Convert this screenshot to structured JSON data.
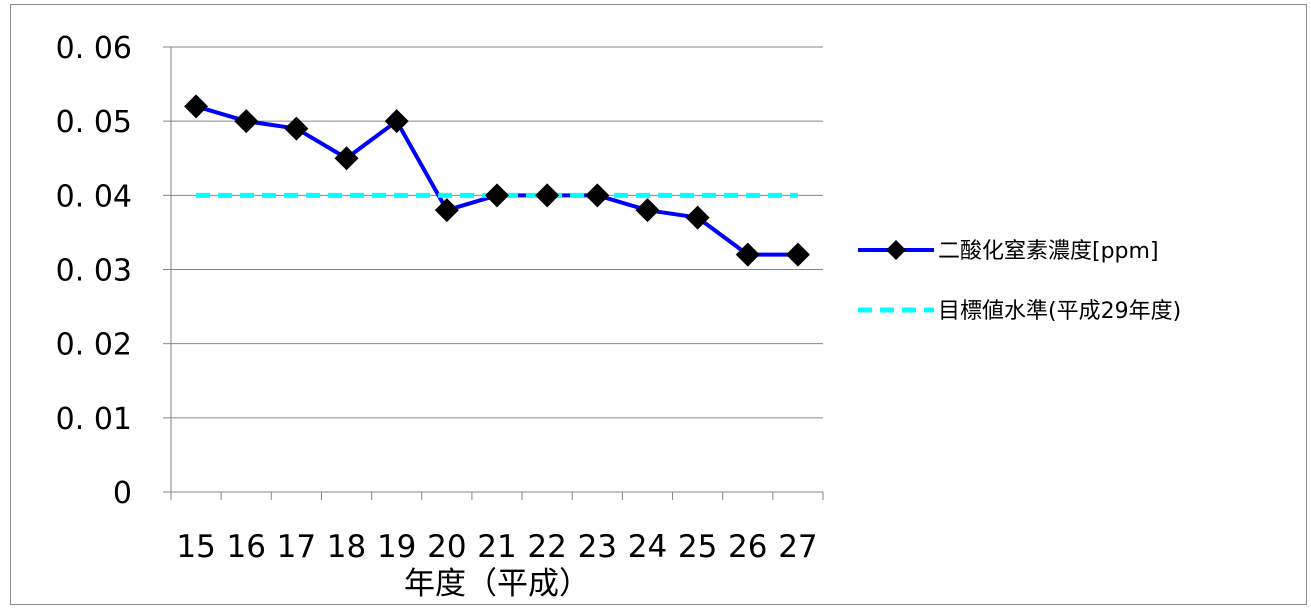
{
  "chart_data": {
    "type": "line",
    "categories": [
      "15",
      "16",
      "17",
      "18",
      "19",
      "20",
      "21",
      "22",
      "23",
      "24",
      "25",
      "26",
      "27"
    ],
    "series": [
      {
        "name": "二酸化窒素濃度[ppm]",
        "values": [
          0.052,
          0.05,
          0.049,
          0.045,
          0.05,
          0.038,
          0.04,
          0.04,
          0.04,
          0.038,
          0.037,
          0.032,
          0.032
        ],
        "color": "#0000ff",
        "marker": "diamond",
        "marker_color": "#000000",
        "style": "solid"
      },
      {
        "name": "目標値水準(平成29年度)",
        "values": [
          0.04,
          0.04,
          0.04,
          0.04,
          0.04,
          0.04,
          0.04,
          0.04,
          0.04,
          0.04,
          0.04,
          0.04,
          0.04
        ],
        "color": "#00ffff",
        "style": "dashed"
      }
    ],
    "xlabel": "年度（平成）",
    "ylabel": "",
    "ylim": [
      0,
      0.06
    ],
    "y_ticks": [
      "0",
      "0. 01",
      "0. 02",
      "0. 03",
      "0. 04",
      "0. 05",
      "0. 06"
    ],
    "grid": true,
    "legend_position": "right"
  }
}
